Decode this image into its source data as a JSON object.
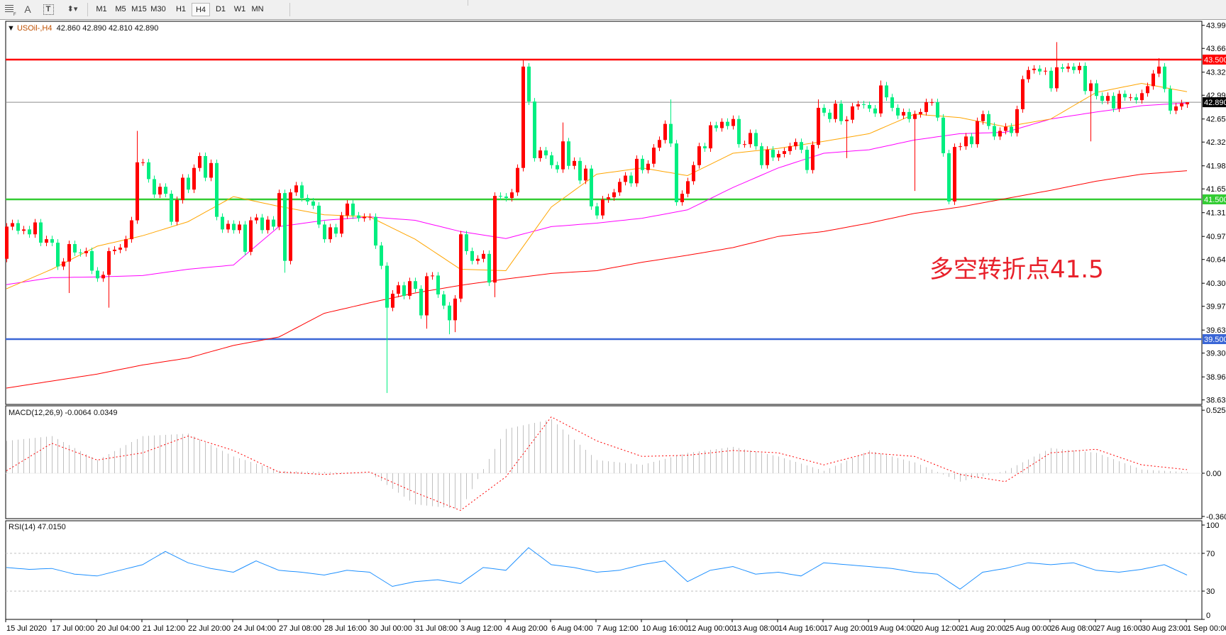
{
  "toolbar": {
    "icons": [
      "grid-fill-icon",
      "text-icon",
      "text-label-icon",
      "arrows-icon"
    ],
    "timeframes": [
      "M1",
      "M5",
      "M15",
      "M30",
      "H1",
      "H4",
      "D1",
      "W1",
      "MN"
    ],
    "active_timeframe": "H4"
  },
  "header": {
    "symbol": "USOil-,H4",
    "ohlc": "42.860 42.890 42.810 42.890"
  },
  "annotation": "多空转折点41.5",
  "colors": {
    "bull": "#ff0000",
    "bear": "#00ee80",
    "ma_fast": "#ffa500",
    "ma_mid": "#ff00ff",
    "ma_slow": "#ff0000",
    "resistance": "#ff0000",
    "pivot": "#33cc33",
    "support": "#3a66d6",
    "current": "#8c8c8c",
    "macd_hist": "#c0c0c0",
    "macd_signal": "#ff0000",
    "rsi": "#1e90ff"
  },
  "chart_data": {
    "type": "candlestick",
    "price_axis": [
      "43.990",
      "43.660",
      "43.320",
      "42.990",
      "42.650",
      "42.320",
      "41.980",
      "41.650",
      "41.310",
      "40.970",
      "40.640",
      "40.300",
      "39.970",
      "39.630",
      "39.300",
      "38.960",
      "38.630"
    ],
    "price_range": [
      38.63,
      43.99
    ],
    "time_labels": [
      "15 Jul 2020",
      "17 Jul 00:00",
      "20 Jul 04:00",
      "21 Jul 12:00",
      "22 Jul 20:00",
      "24 Jul 04:00",
      "27 Jul 08:00",
      "28 Jul 16:00",
      "30 Jul 00:00",
      "31 Jul 08:00",
      "3 Aug 12:00",
      "4 Aug 20:00",
      "6 Aug 04:00",
      "7 Aug 12:00",
      "10 Aug 16:00",
      "12 Aug 00:00",
      "13 Aug 08:00",
      "14 Aug 16:00",
      "17 Aug 20:00",
      "19 Aug 04:00",
      "20 Aug 12:00",
      "21 Aug 20:00",
      "25 Aug 00:00",
      "26 Aug 08:00",
      "27 Aug 16:00",
      "30 Aug 23:00",
      "1 Sep 00:00"
    ],
    "first_open": 40.65,
    "close": [
      41.11,
      41.16,
      41.05,
      41.07,
      41.0,
      41.17,
      40.88,
      40.93,
      40.88,
      40.54,
      40.61,
      40.86,
      40.74,
      40.73,
      40.76,
      40.48,
      40.37,
      40.42,
      40.76,
      40.78,
      40.81,
      40.93,
      41.2,
      42.03,
      42.03,
      41.79,
      41.57,
      41.68,
      41.58,
      41.18,
      41.49,
      41.81,
      41.64,
      41.95,
      42.12,
      41.81,
      42.02,
      41.25,
      41.07,
      41.15,
      41.06,
      41.14,
      40.75,
      41.2,
      41.24,
      41.06,
      41.21,
      41.11,
      41.59,
      40.62,
      41.6,
      41.7,
      41.52,
      41.47,
      41.41,
      41.14,
      40.93,
      41.1,
      41.01,
      41.27,
      41.44,
      41.27,
      41.23,
      41.25,
      41.25,
      40.84,
      40.55,
      39.95,
      40.15,
      40.27,
      40.12,
      40.33,
      40.22,
      39.84,
      40.4,
      40.41,
      40.14,
      39.98,
      39.77,
      40.08,
      41.0,
      40.76,
      40.62,
      40.65,
      40.72,
      40.31,
      41.55,
      41.54,
      41.52,
      41.6,
      41.95,
      43.4,
      42.9,
      42.09,
      42.2,
      42.13,
      41.99,
      41.93,
      42.33,
      41.98,
      42.05,
      41.77,
      41.94,
      41.4,
      41.27,
      41.5,
      41.53,
      41.6,
      41.75,
      41.84,
      41.73,
      42.08,
      41.92,
      42.01,
      42.24,
      42.35,
      42.58,
      42.3,
      41.46,
      41.58,
      41.76,
      41.99,
      42.26,
      42.23,
      42.56,
      42.52,
      42.61,
      42.55,
      42.65,
      42.29,
      42.29,
      42.45,
      42.26,
      41.99,
      42.21,
      42.1,
      42.15,
      42.19,
      42.26,
      42.32,
      42.21,
      41.92,
      42.28,
      42.81,
      42.74,
      42.65,
      42.87,
      42.62,
      42.64,
      42.83,
      42.86,
      42.85,
      42.8,
      42.73,
      43.13,
      42.96,
      42.81,
      42.7,
      42.75,
      42.65,
      42.72,
      42.75,
      42.89,
      42.89,
      42.67,
      42.16,
      41.47,
      42.25,
      42.26,
      42.4,
      42.29,
      42.62,
      42.72,
      42.55,
      42.4,
      42.48,
      42.54,
      42.45,
      42.79,
      43.22,
      43.35,
      43.37,
      43.33,
      43.34,
      43.09,
      43.39,
      43.37,
      43.4,
      43.35,
      43.41,
      43.05,
      43.16,
      42.98,
      42.91,
      42.98,
      42.8,
      43.01,
      42.96,
      42.96,
      42.92,
      43.02,
      43.12,
      43.3,
      43.4,
      43.08,
      42.77,
      42.83,
      42.875,
      42.89
    ],
    "wick_overrides": [
      {
        "i": 11,
        "low": 40.16
      },
      {
        "i": 18,
        "low": 39.95
      },
      {
        "i": 23,
        "high": 42.48
      },
      {
        "i": 49,
        "low": 40.45
      },
      {
        "i": 67,
        "low": 38.73
      },
      {
        "i": 74,
        "low": 39.65
      },
      {
        "i": 78,
        "low": 39.57
      },
      {
        "i": 79,
        "low": 39.6
      },
      {
        "i": 86,
        "low": 40.1
      },
      {
        "i": 91,
        "high": 43.5
      },
      {
        "i": 98,
        "high": 42.6
      },
      {
        "i": 117,
        "high": 42.93
      },
      {
        "i": 143,
        "high": 42.93
      },
      {
        "i": 148,
        "low": 42.09
      },
      {
        "i": 154,
        "high": 43.2
      },
      {
        "i": 160,
        "low": 41.62
      },
      {
        "i": 166,
        "low": 41.43
      },
      {
        "i": 185,
        "high": 43.75
      },
      {
        "i": 191,
        "low": 42.33
      },
      {
        "i": 203,
        "high": 43.52
      },
      {
        "i": 208,
        "open": 42.86,
        "high": 42.89,
        "low": 42.81
      }
    ],
    "ma_sample_step": 8,
    "ma_fast": [
      40.22,
      40.5,
      40.83,
      40.98,
      41.18,
      41.54,
      41.4,
      41.28,
      41.25,
      40.93,
      40.5,
      40.48,
      41.39,
      41.86,
      41.95,
      41.84,
      42.16,
      42.23,
      42.33,
      42.44,
      42.72,
      42.67,
      42.54,
      42.65,
      43.03,
      43.16,
      43.04
    ],
    "ma_mid": [
      40.28,
      40.38,
      40.39,
      40.41,
      40.5,
      40.56,
      41.11,
      41.2,
      41.25,
      41.2,
      41.04,
      40.94,
      41.11,
      41.16,
      41.23,
      41.35,
      41.67,
      41.95,
      42.16,
      42.21,
      42.35,
      42.44,
      42.46,
      42.65,
      42.75,
      42.84,
      42.88
    ],
    "ma_slow": [
      38.8,
      38.9,
      39.0,
      39.13,
      39.23,
      39.41,
      39.53,
      39.87,
      40.02,
      40.16,
      40.27,
      40.36,
      40.44,
      40.48,
      40.6,
      40.7,
      40.81,
      40.97,
      41.04,
      41.16,
      41.3,
      41.39,
      41.51,
      41.63,
      41.76,
      41.86,
      41.91
    ],
    "levels": [
      {
        "label": "43.500",
        "value": 43.5,
        "role": "resistance"
      },
      {
        "label": "42.890",
        "value": 42.89,
        "role": "current"
      },
      {
        "label": "41.500",
        "value": 41.5,
        "role": "pivot"
      },
      {
        "label": "39.500",
        "value": 39.5,
        "role": "support"
      }
    ]
  },
  "macd": {
    "label": "MACD(12,26,9) -0.0064 0.0349",
    "axis": [
      "0.5257",
      "0.00",
      "-0.3603"
    ],
    "range": [
      -0.3603,
      0.5257
    ],
    "sample_step": 8,
    "histogram": [
      0.27,
      0.31,
      0.11,
      0.31,
      0.33,
      0.14,
      0.02,
      0.01,
      0.0,
      -0.26,
      -0.3,
      0.37,
      0.45,
      0.11,
      0.07,
      0.17,
      0.22,
      0.14,
      0.02,
      0.19,
      0.09,
      -0.07,
      0.02,
      0.21,
      0.17,
      0.03,
      0.01
    ],
    "signal": [
      0.02,
      0.25,
      0.11,
      0.17,
      0.31,
      0.19,
      0.01,
      -0.01,
      0.01,
      -0.16,
      -0.31,
      -0.03,
      0.47,
      0.27,
      0.14,
      0.15,
      0.19,
      0.17,
      0.07,
      0.17,
      0.14,
      -0.01,
      -0.07,
      0.17,
      0.2,
      0.07,
      0.03
    ]
  },
  "rsi": {
    "label": "RSI(14) 47.0150",
    "axis": [
      "100",
      "70",
      "30",
      "0"
    ],
    "levels": [
      70,
      30
    ],
    "sample_step": 4,
    "values": [
      55,
      53,
      54,
      48,
      46,
      52,
      58,
      72,
      60,
      54,
      50,
      62,
      52,
      50,
      47,
      52,
      50,
      35,
      40,
      42,
      38,
      55,
      52,
      76,
      58,
      55,
      50,
      52,
      58,
      62,
      40,
      52,
      56,
      48,
      50,
      46,
      60,
      58,
      56,
      54,
      50,
      48,
      32,
      50,
      54,
      60,
      58,
      60,
      52,
      50,
      53,
      58,
      47
    ]
  }
}
